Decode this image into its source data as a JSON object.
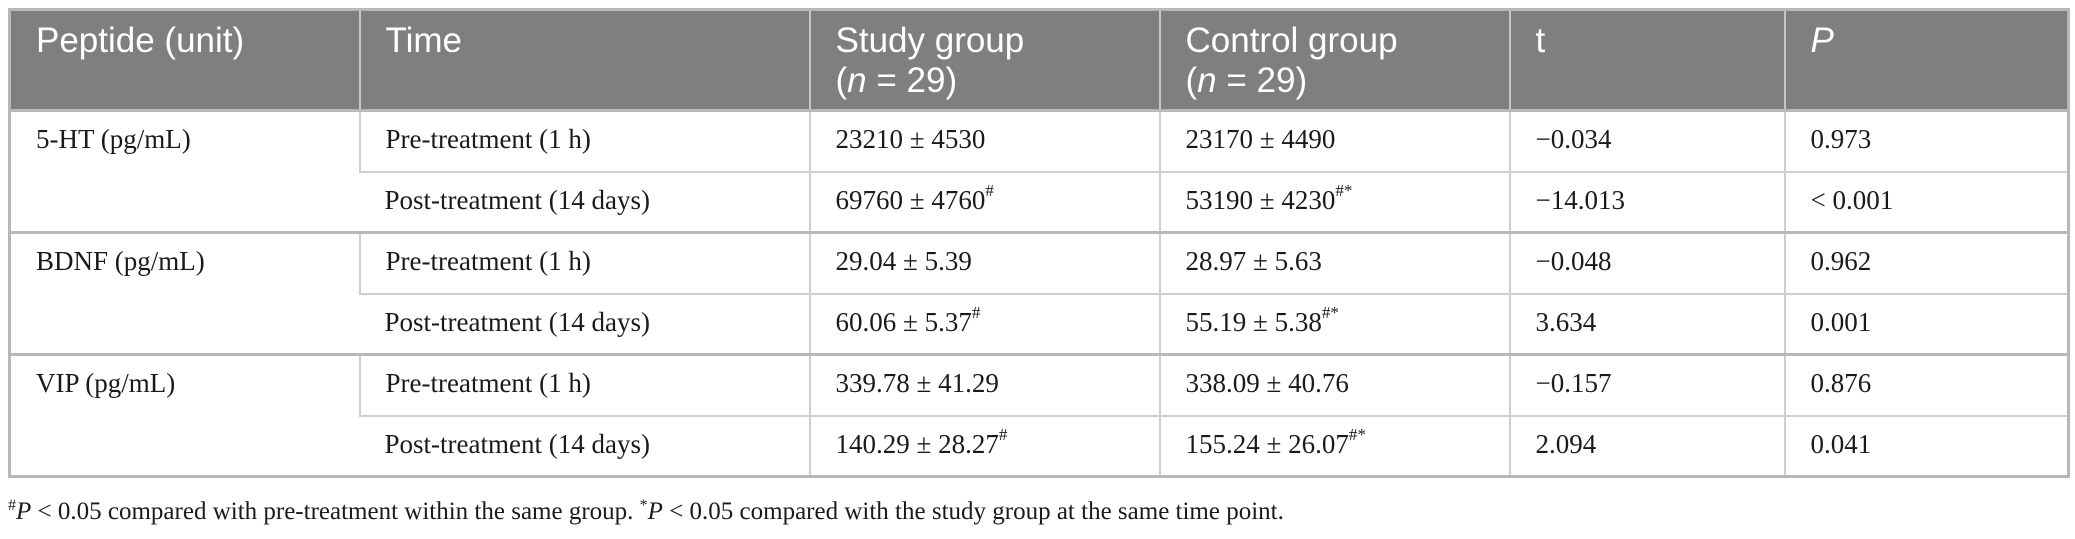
{
  "table": {
    "headers": {
      "peptide": "Peptide (unit)",
      "time": "Time",
      "study_line1": "Study group",
      "study_n_label": "n",
      "study_n_value": " = 29)",
      "control_line1": "Control group",
      "control_n_label": "n",
      "control_n_value": " = 29)",
      "open_paren": "(",
      "t": "t",
      "p": "P"
    },
    "groups": [
      {
        "peptide": "5-HT (pg/mL)",
        "rows": [
          {
            "time": "Pre-treatment (1 h)",
            "study": "23210 ± 4530",
            "study_mark": "",
            "control": "23170 ± 4490",
            "control_mark": "",
            "t": "−0.034",
            "p": "0.973"
          },
          {
            "time": "Post-treatment (14 days)",
            "study": "69760 ± 4760",
            "study_mark": "#",
            "control": "53190 ± 4230",
            "control_mark": "#*",
            "t": "−14.013",
            "p": "< 0.001"
          }
        ]
      },
      {
        "peptide": "BDNF (pg/mL)",
        "rows": [
          {
            "time": "Pre-treatment (1 h)",
            "study": "29.04 ± 5.39",
            "study_mark": "",
            "control": "28.97 ± 5.63",
            "control_mark": "",
            "t": "−0.048",
            "p": "0.962"
          },
          {
            "time": "Post-treatment (14 days)",
            "study": "60.06 ± 5.37",
            "study_mark": "#",
            "control": "55.19 ± 5.38",
            "control_mark": "#*",
            "t": "3.634",
            "p": "0.001"
          }
        ]
      },
      {
        "peptide": "VIP (pg/mL)",
        "rows": [
          {
            "time": "Pre-treatment (1 h)",
            "study": "339.78 ± 41.29",
            "study_mark": "",
            "control": "338.09 ± 40.76",
            "control_mark": "",
            "t": "−0.157",
            "p": "0.876"
          },
          {
            "time": "Post-treatment (14 days)",
            "study": "140.29 ± 28.27",
            "study_mark": "#",
            "control": "155.24 ± 26.07",
            "control_mark": "#*",
            "t": "2.094",
            "p": "0.041"
          }
        ]
      }
    ]
  },
  "footnote": {
    "hash_symbol": "#",
    "p1": "P",
    "text1": " < 0.05 compared with pre-treatment within the same group. ",
    "star_symbol": "*",
    "p2": "P",
    "text2": " < 0.05 compared with the study group at the same time point."
  }
}
